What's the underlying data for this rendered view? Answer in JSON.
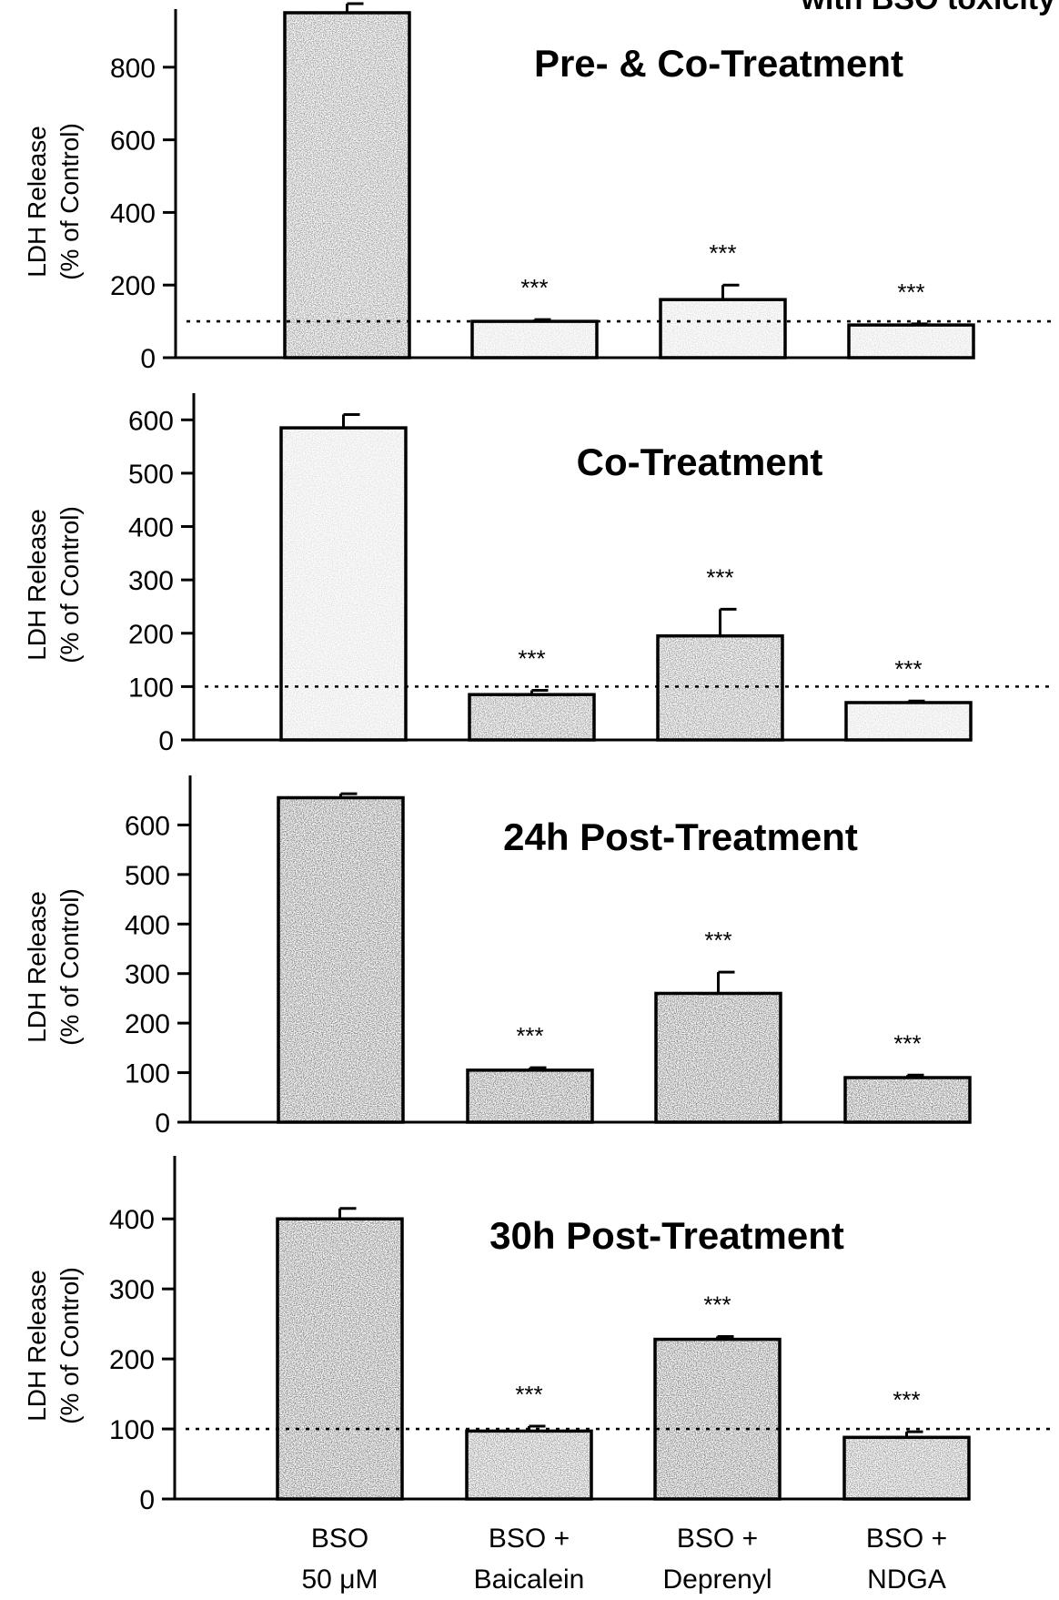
{
  "figure_header": "with BSO toxicity",
  "category_labels": [
    {
      "line1": "BSO",
      "line2": "50 μM"
    },
    {
      "line1": "BSO +",
      "line2": "Baicalein"
    },
    {
      "line1": "BSO +",
      "line2": "Deprenyl"
    },
    {
      "line1": "BSO +",
      "line2": "NDGA"
    }
  ],
  "colors": {
    "light_bar": "#dcdcdc",
    "dark_bar": "#8a8a8a",
    "darkest_bar": "#6f6f6f",
    "axis": "#000000"
  },
  "chart_data": [
    {
      "type": "bar",
      "title": "Pre- & Co-Treatment",
      "ylabel": [
        "LDH Release",
        "(% of Control)"
      ],
      "ylim": [
        0,
        960
      ],
      "yticks": [
        0,
        200,
        400,
        600,
        800
      ],
      "categories": [
        "BSO 50 μM",
        "BSO + Baicalein",
        "BSO + Deprenyl",
        "BSO + NDGA"
      ],
      "values": [
        950,
        100,
        160,
        90
      ],
      "errors": [
        25,
        5,
        40,
        3
      ],
      "significance": [
        "",
        "***",
        "***",
        "***"
      ],
      "control_line": 100,
      "bar_shades": [
        "dark",
        "light",
        "light",
        "light"
      ]
    },
    {
      "type": "bar",
      "title": "Co-Treatment",
      "ylabel": [
        "LDH Release",
        "(% of Control)"
      ],
      "ylim": [
        0,
        650
      ],
      "yticks": [
        0,
        100,
        200,
        300,
        400,
        500,
        600
      ],
      "categories": [
        "BSO 50 μM",
        "BSO + Baicalein",
        "BSO + Deprenyl",
        "BSO + NDGA"
      ],
      "values": [
        585,
        85,
        195,
        70
      ],
      "errors": [
        25,
        8,
        50,
        3
      ],
      "significance": [
        "",
        "***",
        "***",
        "***"
      ],
      "control_line": 100,
      "bar_shades": [
        "light",
        "dark",
        "dark",
        "light"
      ]
    },
    {
      "type": "bar",
      "title": "24h Post-Treatment",
      "ylabel": [
        "LDH Release",
        "(% of Control)"
      ],
      "ylim": [
        0,
        700
      ],
      "yticks": [
        0,
        100,
        200,
        300,
        400,
        500,
        600
      ],
      "categories": [
        "BSO 50 μM",
        "BSO + Baicalein",
        "BSO + Deprenyl",
        "BSO + NDGA"
      ],
      "values": [
        655,
        105,
        260,
        90
      ],
      "errors": [
        8,
        5,
        43,
        5
      ],
      "significance": [
        "",
        "***",
        "***",
        "***"
      ],
      "bar_shades": [
        "darkest",
        "darkest",
        "darkest",
        "darkest"
      ]
    },
    {
      "type": "bar",
      "title": "30h Post-Treatment",
      "ylabel": [
        "LDH Release",
        "(% of Control)"
      ],
      "ylim": [
        0,
        490
      ],
      "yticks": [
        0,
        100,
        200,
        300,
        400
      ],
      "categories": [
        "BSO 50 μM",
        "BSO + Baicalein",
        "BSO + Deprenyl",
        "BSO + NDGA"
      ],
      "values": [
        400,
        97,
        228,
        88
      ],
      "errors": [
        15,
        7,
        4,
        8
      ],
      "significance": [
        "",
        "***",
        "***",
        "***"
      ],
      "control_line": 100,
      "bar_shades": [
        "darkest",
        "dark",
        "darkest",
        "dark"
      ]
    }
  ]
}
